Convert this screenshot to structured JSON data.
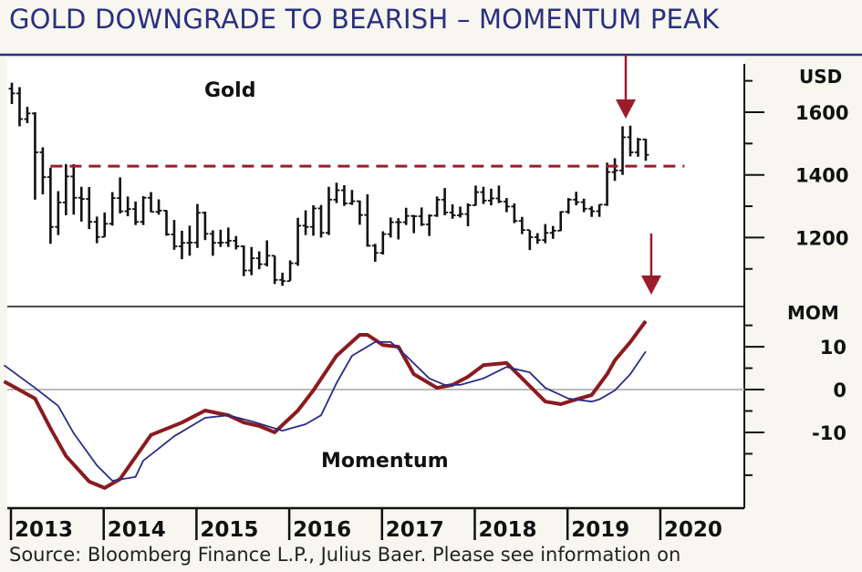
{
  "title": "GOLD DOWNGRADE TO BEARISH – MOMENTUM PEAK",
  "source": "Source: Bloomberg Finance L.P., Julius Baer. Please see information on",
  "colors": {
    "title": "#2a3080",
    "momentum_fast": "#8b1a1f",
    "momentum_slow": "#2a2d86",
    "resistance": "#9b1c2b",
    "arrow": "#9b1c2b",
    "bars": "#111111",
    "zero_line": "#bbbbbb"
  },
  "chart_data": [
    {
      "type": "ohlc",
      "label": "Gold",
      "unit_label": "USD",
      "ylim": [
        980,
        1760
      ],
      "yticks": [
        1200,
        1400,
        1600
      ],
      "minor_yticks": [
        1100,
        1300,
        1500,
        1700
      ],
      "xticks": [
        "2013",
        "2014",
        "2015",
        "2016",
        "2017",
        "2018",
        "2019",
        "2020"
      ],
      "start_month": "2013-01",
      "frequency": "monthly",
      "ohlc": [
        [
          1675,
          1694,
          1626,
          1660
        ],
        [
          1660,
          1680,
          1555,
          1578
        ],
        [
          1578,
          1617,
          1565,
          1596
        ],
        [
          1596,
          1600,
          1321,
          1472
        ],
        [
          1472,
          1488,
          1338,
          1393
        ],
        [
          1393,
          1423,
          1180,
          1234
        ],
        [
          1234,
          1348,
          1208,
          1312
        ],
        [
          1312,
          1434,
          1271,
          1395
        ],
        [
          1395,
          1434,
          1273,
          1327
        ],
        [
          1327,
          1362,
          1251,
          1323
        ],
        [
          1323,
          1361,
          1227,
          1250
        ],
        [
          1250,
          1267,
          1182,
          1202
        ],
        [
          1202,
          1280,
          1202,
          1244
        ],
        [
          1244,
          1345,
          1238,
          1326
        ],
        [
          1326,
          1392,
          1277,
          1284
        ],
        [
          1284,
          1331,
          1268,
          1291
        ],
        [
          1291,
          1315,
          1240,
          1250
        ],
        [
          1250,
          1332,
          1240,
          1327
        ],
        [
          1327,
          1345,
          1281,
          1282
        ],
        [
          1282,
          1322,
          1273,
          1286
        ],
        [
          1286,
          1287,
          1206,
          1210
        ],
        [
          1210,
          1256,
          1161,
          1172
        ],
        [
          1172,
          1222,
          1131,
          1183
        ],
        [
          1183,
          1238,
          1142,
          1184
        ],
        [
          1184,
          1307,
          1167,
          1279
        ],
        [
          1279,
          1283,
          1192,
          1212
        ],
        [
          1212,
          1223,
          1142,
          1183
        ],
        [
          1183,
          1225,
          1170,
          1184
        ],
        [
          1184,
          1232,
          1170,
          1190
        ],
        [
          1190,
          1205,
          1162,
          1172
        ],
        [
          1172,
          1175,
          1077,
          1095
        ],
        [
          1095,
          1170,
          1080,
          1134
        ],
        [
          1134,
          1156,
          1099,
          1115
        ],
        [
          1115,
          1191,
          1108,
          1142
        ],
        [
          1142,
          1142,
          1052,
          1065
        ],
        [
          1065,
          1088,
          1046,
          1061
        ],
        [
          1061,
          1127,
          1062,
          1118
        ],
        [
          1118,
          1263,
          1110,
          1238
        ],
        [
          1238,
          1287,
          1208,
          1234
        ],
        [
          1234,
          1303,
          1206,
          1293
        ],
        [
          1293,
          1304,
          1200,
          1215
        ],
        [
          1215,
          1362,
          1208,
          1321
        ],
        [
          1321,
          1375,
          1310,
          1351
        ],
        [
          1351,
          1367,
          1301,
          1309
        ],
        [
          1309,
          1352,
          1304,
          1316
        ],
        [
          1316,
          1318,
          1241,
          1272
        ],
        [
          1272,
          1338,
          1171,
          1174
        ],
        [
          1174,
          1180,
          1123,
          1151
        ],
        [
          1151,
          1220,
          1146,
          1211
        ],
        [
          1211,
          1264,
          1200,
          1249
        ],
        [
          1249,
          1262,
          1194,
          1249
        ],
        [
          1249,
          1295,
          1240,
          1269
        ],
        [
          1269,
          1272,
          1214,
          1268
        ],
        [
          1268,
          1296,
          1237,
          1242
        ],
        [
          1242,
          1274,
          1205,
          1270
        ],
        [
          1270,
          1331,
          1266,
          1321
        ],
        [
          1321,
          1358,
          1271,
          1280
        ],
        [
          1280,
          1306,
          1260,
          1271
        ],
        [
          1271,
          1299,
          1264,
          1275
        ],
        [
          1275,
          1309,
          1236,
          1303
        ],
        [
          1303,
          1366,
          1302,
          1345
        ],
        [
          1345,
          1362,
          1307,
          1318
        ],
        [
          1318,
          1356,
          1303,
          1325
        ],
        [
          1325,
          1366,
          1310,
          1315
        ],
        [
          1315,
          1326,
          1281,
          1299
        ],
        [
          1299,
          1309,
          1246,
          1253
        ],
        [
          1253,
          1266,
          1211,
          1224
        ],
        [
          1224,
          1223,
          1160,
          1201
        ],
        [
          1201,
          1214,
          1180,
          1192
        ],
        [
          1192,
          1243,
          1182,
          1215
        ],
        [
          1215,
          1237,
          1196,
          1222
        ],
        [
          1222,
          1284,
          1221,
          1282
        ],
        [
          1282,
          1326,
          1276,
          1321
        ],
        [
          1321,
          1346,
          1303,
          1313
        ],
        [
          1313,
          1324,
          1281,
          1292
        ],
        [
          1292,
          1300,
          1266,
          1284
        ],
        [
          1284,
          1306,
          1266,
          1305
        ],
        [
          1305,
          1439,
          1301,
          1409
        ],
        [
          1409,
          1453,
          1381,
          1414
        ],
        [
          1414,
          1555,
          1400,
          1520
        ],
        [
          1520,
          1557,
          1459,
          1472
        ],
        [
          1472,
          1518,
          1458,
          1513
        ],
        [
          1513,
          1515,
          1445,
          1464
        ]
      ],
      "resistance_line": {
        "value": 1428,
        "from": "2013-06",
        "to": "2020-04",
        "style": "dashed"
      },
      "arrow": {
        "at": "2019-09",
        "direction": "down"
      }
    },
    {
      "type": "line",
      "label": "Momentum",
      "unit_label": "MOM",
      "ylim": [
        -27.7,
        19.4
      ],
      "yticks": [
        -10,
        0,
        10
      ],
      "minor_yticks": [
        -20,
        -15,
        -5,
        5,
        15
      ],
      "zero_line": true,
      "series": [
        {
          "style": "thick",
          "color": "#8b1a1f",
          "points": [
            [
              "2012-12",
              1.9
            ],
            [
              "2013-04",
              -2.1
            ],
            [
              "2013-06",
              -9.1
            ],
            [
              "2013-08",
              -15.5
            ],
            [
              "2013-11",
              -21.5
            ],
            [
              "2014-01",
              -23
            ],
            [
              "2014-03",
              -20.9
            ],
            [
              "2014-07",
              -10.6
            ],
            [
              "2014-11",
              -7.7
            ],
            [
              "2015-02",
              -4.9
            ],
            [
              "2015-05",
              -6
            ],
            [
              "2015-07",
              -7.7
            ],
            [
              "2015-09",
              -8.5
            ],
            [
              "2015-11",
              -10
            ],
            [
              "2016-02",
              -4.9
            ],
            [
              "2016-04",
              -0.2
            ],
            [
              "2016-07",
              7.9
            ],
            [
              "2016-10",
              12.8
            ],
            [
              "2016-11",
              12.8
            ],
            [
              "2017-01",
              10.4
            ],
            [
              "2017-03",
              10
            ],
            [
              "2017-05",
              3.6
            ],
            [
              "2017-08",
              0.4
            ],
            [
              "2017-10",
              1.1
            ],
            [
              "2017-12",
              3
            ],
            [
              "2018-02",
              5.7
            ],
            [
              "2018-05",
              6.2
            ],
            [
              "2018-07",
              2.6
            ],
            [
              "2018-10",
              -2.8
            ],
            [
              "2018-12",
              -3.4
            ],
            [
              "2019-02",
              -2.3
            ],
            [
              "2019-04",
              -1.3
            ],
            [
              "2019-06",
              3.6
            ],
            [
              "2019-07",
              6.8
            ],
            [
              "2019-09",
              11.1
            ],
            [
              "2019-11",
              16
            ]
          ]
        },
        {
          "style": "thin",
          "color": "#2a2d86",
          "points": [
            [
              "2012-12",
              5.7
            ],
            [
              "2013-04",
              0.4
            ],
            [
              "2013-07",
              -3.8
            ],
            [
              "2013-09",
              -10.2
            ],
            [
              "2013-12",
              -17.7
            ],
            [
              "2014-02",
              -21.3
            ],
            [
              "2014-05",
              -20.4
            ],
            [
              "2014-06",
              -16.6
            ],
            [
              "2014-10",
              -10.9
            ],
            [
              "2015-02",
              -6.6
            ],
            [
              "2015-05",
              -6
            ],
            [
              "2015-08",
              -7.4
            ],
            [
              "2015-12",
              -9.6
            ],
            [
              "2016-03",
              -8.1
            ],
            [
              "2016-05",
              -6
            ],
            [
              "2016-07",
              1.5
            ],
            [
              "2016-09",
              7.9
            ],
            [
              "2016-12",
              11.1
            ],
            [
              "2017-02",
              11.1
            ],
            [
              "2017-04",
              7.9
            ],
            [
              "2017-07",
              2.6
            ],
            [
              "2017-09",
              1.1
            ],
            [
              "2017-11",
              1.1
            ],
            [
              "2018-02",
              2.6
            ],
            [
              "2018-05",
              5.3
            ],
            [
              "2018-08",
              4
            ],
            [
              "2018-10",
              0.4
            ],
            [
              "2019-01",
              -2.1
            ],
            [
              "2019-04",
              -2.8
            ],
            [
              "2019-05",
              -2.3
            ],
            [
              "2019-07",
              -0.2
            ],
            [
              "2019-09",
              3.6
            ],
            [
              "2019-11",
              8.9
            ]
          ]
        }
      ],
      "arrow": {
        "at": "2019-11",
        "direction": "down"
      }
    }
  ]
}
